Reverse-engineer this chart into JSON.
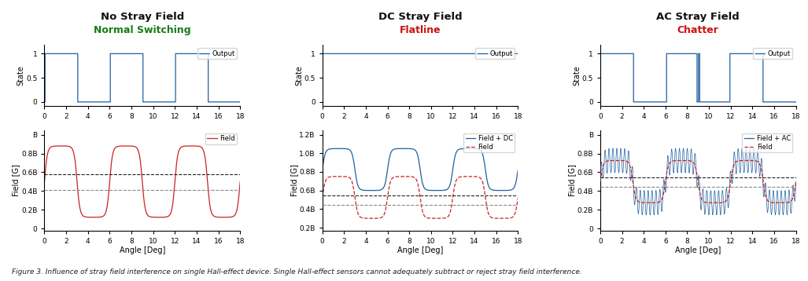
{
  "title1": "No Stray Field",
  "subtitle1": "Normal Switching",
  "title2": "DC Stray Field",
  "subtitle2": "Flatline",
  "title3": "AC Stray Field",
  "subtitle3": "Chatter",
  "subtitle1_color": "#1a7a1a",
  "subtitle2_color": "#cc1111",
  "subtitle3_color": "#cc1111",
  "title_color": "#111111",
  "line_color_blue": "#2060a0",
  "line_color_red": "#cc2222",
  "dashed_bop_color": "#222222",
  "dashed_brp_color": "#888888",
  "x_max": 18,
  "BOP1": 0.575,
  "BRP1": 0.415,
  "BOP_dc": 0.545,
  "BRP_dc": 0.445,
  "BOP_ac": 0.545,
  "BRP_ac": 0.445,
  "dc_shift": 0.3,
  "ac_amp": 0.13,
  "ac_cycles": 50,
  "caption": "Figure 3. Influence of stray field interference on single Hall-effect device. Single Hall-effect sensors cannot adequately subtract or reject stray field interference.",
  "ylabel_top": "State",
  "ylabel_bottom": "Field [G]",
  "xlabel": "Angle [Deg]"
}
